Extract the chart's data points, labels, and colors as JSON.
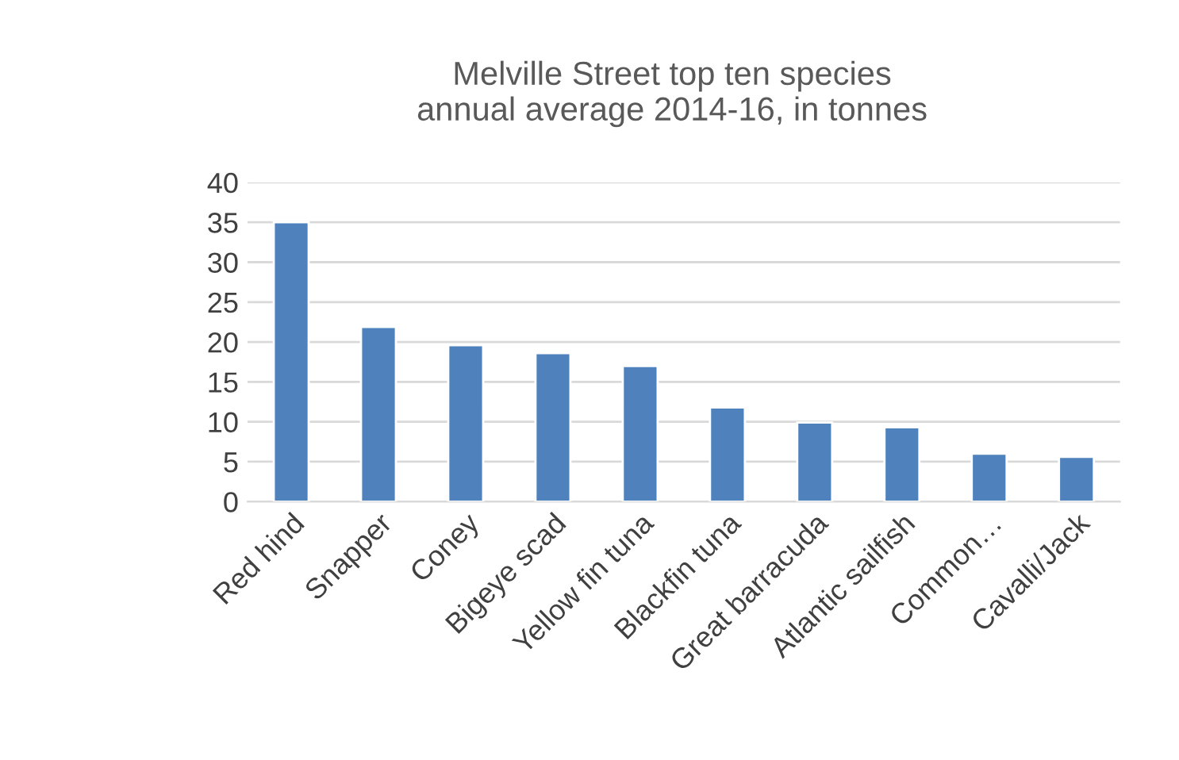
{
  "chart_data": {
    "type": "bar",
    "title": "Melville Street top ten species\nannual average 2014-16, in tonnes",
    "categories": [
      "Red hind",
      "Snapper",
      "Coney",
      "Bigeye scad",
      "Yellow fin tuna",
      "Blackfin tuna",
      "Great barracuda",
      "Atlantic sailfish",
      "Common…",
      "Cavalli/Jack"
    ],
    "values": [
      35.0,
      21.9,
      19.6,
      18.6,
      17.0,
      11.8,
      9.9,
      9.3,
      6.0,
      5.6
    ],
    "color": "#4f81bd",
    "ylim": [
      0,
      40
    ],
    "yticks": [
      0,
      5,
      10,
      15,
      20,
      25,
      30,
      35,
      40
    ],
    "grid": "y"
  }
}
